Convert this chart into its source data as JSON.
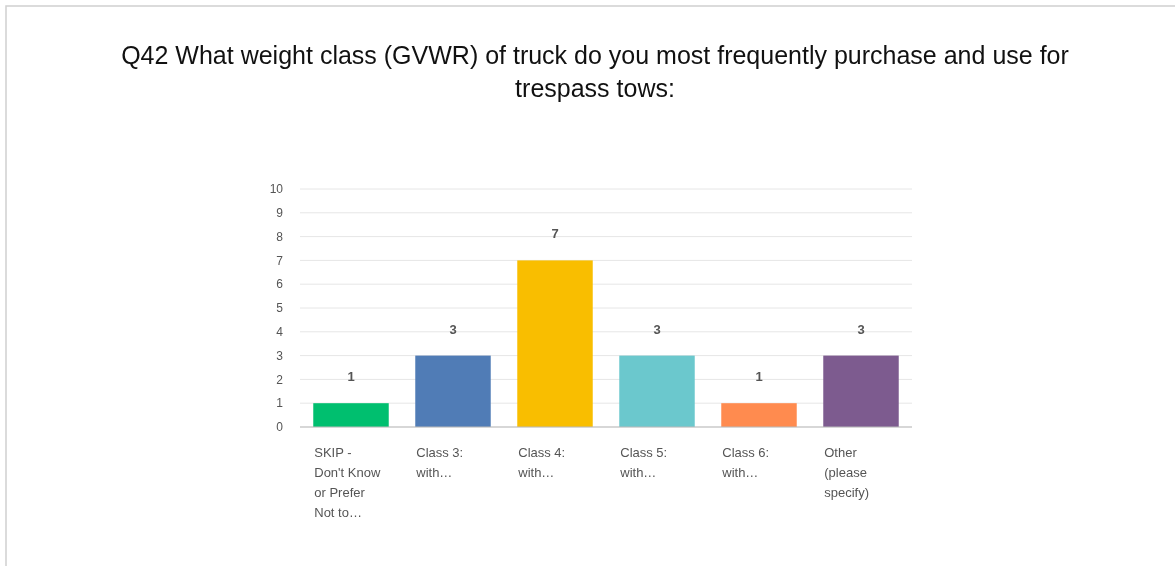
{
  "chart_data": {
    "type": "bar",
    "title": "Q42 What weight class (GVWR) of truck do you most frequently purchase and use for trespass tows:",
    "categories": [
      "SKIP - Don't Know or Prefer Not to…",
      "Class 3: with…",
      "Class 4: with…",
      "Class 5: with…",
      "Class 6: with…",
      "Other (please specify)"
    ],
    "values": [
      1,
      3,
      7,
      3,
      1,
      3
    ],
    "colors": [
      "#00bf6f",
      "#507cb6",
      "#f9be00",
      "#6bc8cd",
      "#ff8b4f",
      "#7d5b8f"
    ],
    "ylim": [
      0,
      10
    ],
    "yticks": [
      0,
      1,
      2,
      3,
      4,
      5,
      6,
      7,
      8,
      9,
      10
    ],
    "grid": "y",
    "data_labels": true
  }
}
